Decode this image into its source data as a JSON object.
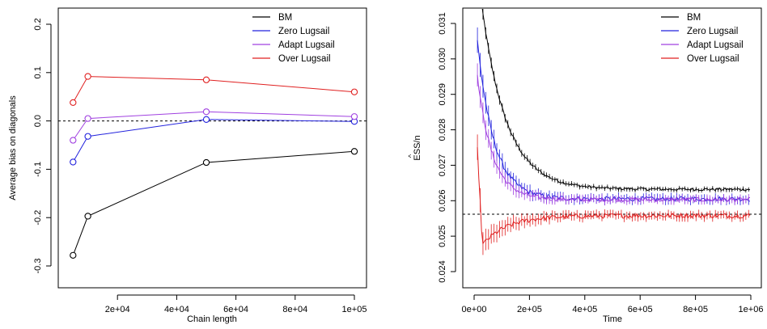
{
  "chart_data": [
    {
      "type": "line",
      "title": "",
      "xlabel": "Chain length",
      "ylabel": "Average bias on diagonals",
      "xlim": [
        0,
        100000
      ],
      "ylim": [
        -0.3,
        0.2
      ],
      "x": [
        5000,
        10000,
        50000,
        100000
      ],
      "x_tick_values": [
        20000,
        40000,
        60000,
        80000,
        100000
      ],
      "x_tick_labels": [
        "2e+04",
        "4e+04",
        "6e+04",
        "8e+04",
        "1e+05"
      ],
      "y_tick_values": [
        -0.3,
        -0.2,
        -0.1,
        0.0,
        0.1,
        0.2
      ],
      "y_tick_labels": [
        "-0.3",
        "-0.2",
        "-0.1",
        "0.0",
        "0.1",
        "0.2"
      ],
      "reference_line": 0.0,
      "legend": "top-right",
      "series": [
        {
          "name": "BM",
          "color": "#000000",
          "values": [
            -0.278,
            -0.197,
            -0.086,
            -0.063
          ]
        },
        {
          "name": "Zero Lugsail",
          "color": "#2222dd",
          "values": [
            -0.085,
            -0.032,
            0.003,
            -0.001
          ]
        },
        {
          "name": "Adapt Lugsail",
          "color": "#a040e0",
          "values": [
            -0.04,
            0.005,
            0.019,
            0.009
          ]
        },
        {
          "name": "Over Lugsail",
          "color": "#e02020",
          "values": [
            0.038,
            0.092,
            0.085,
            0.06
          ]
        }
      ]
    },
    {
      "type": "line",
      "title": "",
      "xlabel": "Time",
      "ylabel": "ESS/n",
      "ylabel_accent": "^",
      "xlim": [
        0,
        1000000
      ],
      "ylim": [
        0.0242,
        0.0311
      ],
      "x_tick_values": [
        0,
        200000,
        400000,
        600000,
        800000,
        1000000
      ],
      "x_tick_labels": [
        "0e+00",
        "2e+05",
        "4e+05",
        "6e+05",
        "8e+05",
        "1e+06"
      ],
      "y_tick_values": [
        0.024,
        0.025,
        0.026,
        0.027,
        0.028,
        0.029,
        0.03,
        0.031
      ],
      "y_tick_labels": [
        "0.024",
        "0.025",
        "0.026",
        "0.027",
        "0.028",
        "0.029",
        "0.030",
        "0.031"
      ],
      "reference_line": 0.02562,
      "legend": "top-right",
      "series": [
        {
          "name": "BM",
          "color": "#000000",
          "start": 0.0325,
          "final": 0.02632,
          "tau": 90000,
          "x0": 12000,
          "noise": 4e-05,
          "err": 6e-05
        },
        {
          "name": "Zero Lugsail",
          "color": "#2222dd",
          "start": 0.0305,
          "final": 0.02605,
          "tau": 60000,
          "x0": 12000,
          "noise": 7e-05,
          "err": 0.00011
        },
        {
          "name": "Adapt Lugsail",
          "color": "#a040e0",
          "start": 0.0295,
          "final": 0.02603,
          "tau": 55000,
          "x0": 12000,
          "noise": 6e-05,
          "err": 0.0001
        },
        {
          "name": "Over Lugsail",
          "color": "#e02020",
          "start": 0.02475,
          "final": 0.02558,
          "tau": 90000,
          "x0": 30000,
          "noise": 7e-05,
          "err": 0.00011,
          "spike": 0.02745
        }
      ]
    }
  ]
}
